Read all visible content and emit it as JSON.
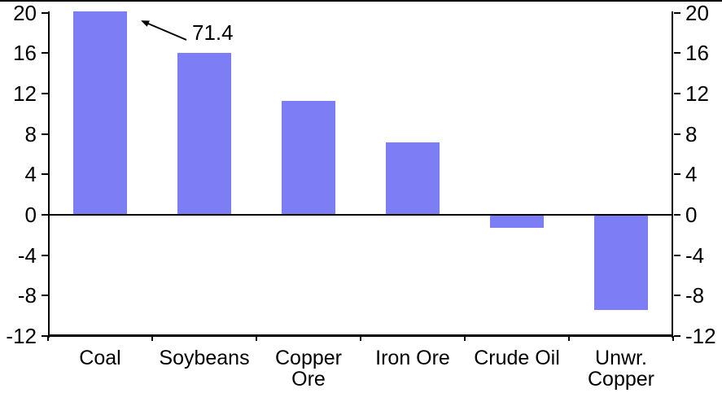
{
  "chart_data": {
    "type": "bar",
    "categories": [
      "Coal",
      "Soybeans",
      "Copper Ore",
      "Iron Ore",
      "Crude Oil",
      "Unwr. Copper"
    ],
    "values": [
      71.4,
      16.0,
      11.3,
      7.2,
      -1.3,
      -9.4
    ],
    "annotation": {
      "text": "71.4",
      "target_category": "Coal",
      "note": "bar clipped at axis maximum"
    },
    "title": "",
    "xlabel": "",
    "ylabel": "",
    "ylim": [
      -12,
      20
    ],
    "yticks_left": [
      20,
      16,
      12,
      8,
      4,
      0,
      -4,
      -8,
      -12
    ],
    "yticks_right": [
      20,
      16,
      12,
      8,
      4,
      0,
      -4,
      -8,
      -12
    ],
    "grid": "off",
    "legend_position": "none",
    "bar_color": "#7D7DF5",
    "axis_color": "#000000",
    "background_color": "#FFFFFF"
  }
}
